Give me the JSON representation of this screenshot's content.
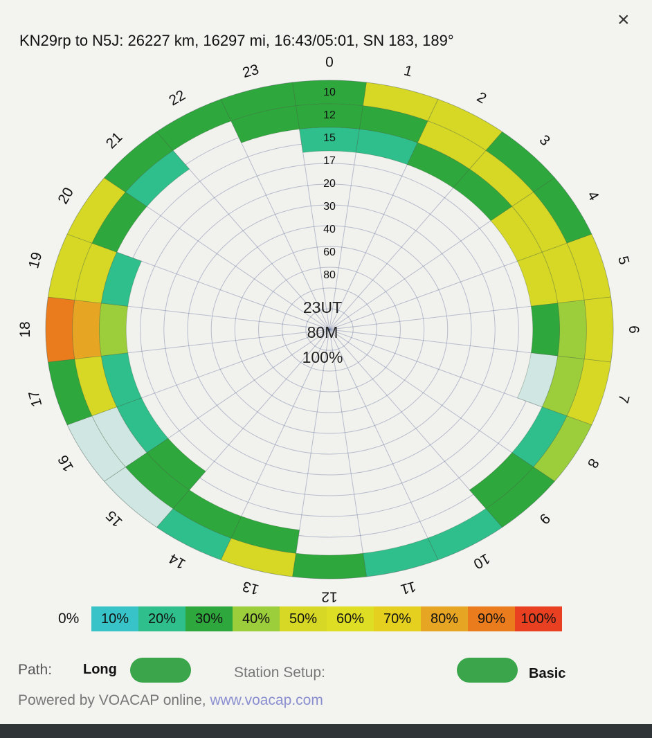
{
  "header": {
    "title": "KN29rp to N5J: 26227 km, 16297 mi, 16:43/05:01, SN 183, 189°",
    "close_label": "×"
  },
  "center": {
    "time": "23UT",
    "band": "80M",
    "percent": "100%"
  },
  "chart_data": {
    "type": "polar-heatmap",
    "hour_labels": [
      "0",
      "1",
      "2",
      "3",
      "4",
      "5",
      "6",
      "7",
      "8",
      "9",
      "10",
      "11",
      "12",
      "13",
      "14",
      "15",
      "16",
      "17",
      "18",
      "19",
      "20",
      "21",
      "22",
      "23"
    ],
    "ring_labels": [
      "10",
      "12",
      "15",
      "17",
      "20",
      "30",
      "40",
      "60",
      "80"
    ],
    "rings_from_outer": [
      "10",
      "12",
      "15"
    ],
    "reliability_percent": [
      [
        30,
        30,
        20
      ],
      [
        50,
        30,
        20
      ],
      [
        50,
        50,
        30
      ],
      [
        30,
        50,
        30
      ],
      [
        30,
        50,
        50
      ],
      [
        50,
        50,
        50
      ],
      [
        50,
        40,
        30
      ],
      [
        50,
        40,
        5
      ],
      [
        40,
        20,
        0
      ],
      [
        30,
        30,
        0
      ],
      [
        20,
        0,
        0
      ],
      [
        20,
        0,
        0
      ],
      [
        30,
        0,
        0
      ],
      [
        50,
        30,
        0
      ],
      [
        20,
        30,
        0
      ],
      [
        5,
        30,
        30
      ],
      [
        5,
        5,
        20
      ],
      [
        30,
        50,
        20
      ],
      [
        90,
        80,
        40
      ],
      [
        50,
        50,
        20
      ],
      [
        50,
        30,
        0
      ],
      [
        30,
        20,
        0
      ],
      [
        30,
        0,
        0
      ],
      [
        30,
        30,
        0
      ]
    ]
  },
  "legend": {
    "first_label": "0%",
    "items": [
      {
        "label": "10%",
        "color": "#38c3c8"
      },
      {
        "label": "20%",
        "color": "#2fbf8c"
      },
      {
        "label": "30%",
        "color": "#2ea83c"
      },
      {
        "label": "40%",
        "color": "#9ccd3a"
      },
      {
        "label": "50%",
        "color": "#d6d825"
      },
      {
        "label": "60%",
        "color": "#dede24"
      },
      {
        "label": "70%",
        "color": "#e5d020"
      },
      {
        "label": "80%",
        "color": "#e6a624"
      },
      {
        "label": "90%",
        "color": "#ea7c1e"
      },
      {
        "label": "100%",
        "color": "#e84020"
      }
    ],
    "pale_color": "#cfe6e2"
  },
  "footer": {
    "path_label": "Path:",
    "path_value": "Long",
    "station_label": "Station Setup:",
    "station_value": "Basic",
    "powered_prefix": "Powered by VOACAP online, ",
    "powered_link": "www.voacap.com"
  }
}
